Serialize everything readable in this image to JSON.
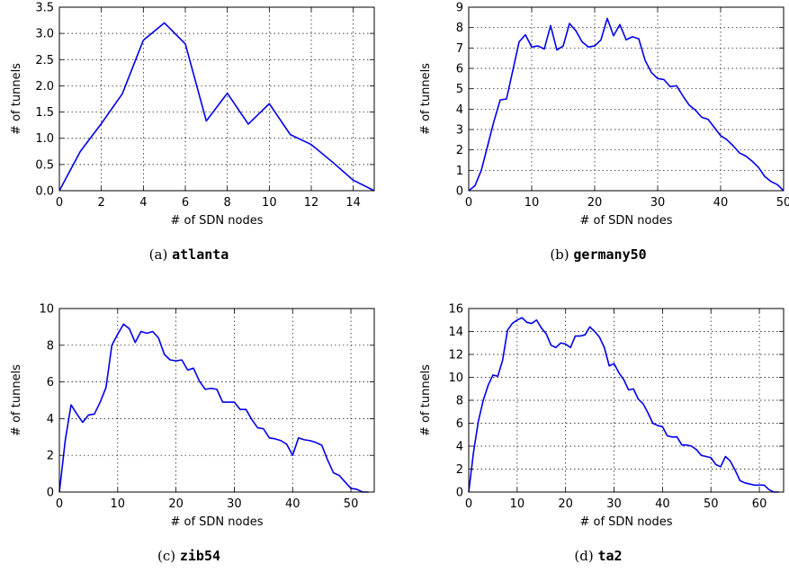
{
  "chart_data": [
    {
      "type": "line",
      "caption_prefix": "(a)",
      "caption_name": "atlanta",
      "xlabel": "# of SDN nodes",
      "ylabel": "# of tunnels",
      "xlim": [
        0,
        15
      ],
      "ylim": [
        0,
        3.5
      ],
      "xticks": [
        0,
        2,
        4,
        6,
        8,
        10,
        12,
        14
      ],
      "yticks": [
        0.0,
        0.5,
        1.0,
        1.5,
        2.0,
        2.5,
        3.0,
        3.5
      ],
      "ytick_format": "0.0",
      "grid": true,
      "color": "#0000ee",
      "x": [
        0,
        1,
        2,
        3,
        4,
        5,
        6,
        7,
        8,
        9,
        10,
        11,
        12,
        13,
        14,
        15
      ],
      "y": [
        0.0,
        0.75,
        1.28,
        1.85,
        2.87,
        3.2,
        2.8,
        1.33,
        1.86,
        1.27,
        1.66,
        1.07,
        0.88,
        0.55,
        0.2,
        0.0
      ]
    },
    {
      "type": "line",
      "caption_prefix": "(b)",
      "caption_name": "germany50",
      "xlabel": "# of SDN nodes",
      "ylabel": "# of tunnels",
      "xlim": [
        0,
        50
      ],
      "ylim": [
        0,
        9
      ],
      "xticks": [
        0,
        10,
        20,
        30,
        40,
        50
      ],
      "yticks": [
        0,
        1,
        2,
        3,
        4,
        5,
        6,
        7,
        8,
        9
      ],
      "ytick_format": "0",
      "grid": true,
      "color": "#0000ee",
      "x": [
        0,
        1,
        2,
        3,
        4,
        5,
        6,
        7,
        8,
        9,
        10,
        11,
        12,
        13,
        14,
        15,
        16,
        17,
        18,
        19,
        20,
        21,
        22,
        23,
        24,
        25,
        26,
        27,
        28,
        29,
        30,
        31,
        32,
        33,
        34,
        35,
        36,
        37,
        38,
        39,
        40,
        41,
        42,
        43,
        44,
        45,
        46,
        47,
        48,
        49,
        50
      ],
      "y": [
        0,
        0.25,
        1.0,
        2.2,
        3.4,
        4.45,
        4.5,
        5.9,
        7.3,
        7.65,
        7.05,
        7.1,
        6.95,
        8.1,
        6.9,
        7.1,
        8.2,
        7.85,
        7.3,
        7.05,
        7.1,
        7.4,
        8.45,
        7.6,
        8.15,
        7.4,
        7.55,
        7.45,
        6.4,
        5.8,
        5.5,
        5.45,
        5.1,
        5.15,
        4.65,
        4.2,
        3.95,
        3.6,
        3.5,
        3.1,
        2.7,
        2.5,
        2.2,
        1.85,
        1.7,
        1.45,
        1.15,
        0.7,
        0.45,
        0.3,
        0.0
      ]
    },
    {
      "type": "line",
      "caption_prefix": "(c)",
      "caption_name": "zib54",
      "xlabel": "# of SDN nodes",
      "ylabel": "# of tunnels",
      "xlim": [
        0,
        54
      ],
      "ylim": [
        0,
        10
      ],
      "xticks": [
        0,
        10,
        20,
        30,
        40,
        50
      ],
      "yticks": [
        0,
        2,
        4,
        6,
        8,
        10
      ],
      "ytick_format": "0",
      "grid": true,
      "color": "#0000ee",
      "x": [
        0,
        1,
        2,
        3,
        4,
        5,
        6,
        7,
        8,
        9,
        10,
        11,
        12,
        13,
        14,
        15,
        16,
        17,
        18,
        19,
        20,
        21,
        22,
        23,
        24,
        25,
        26,
        27,
        28,
        29,
        30,
        31,
        32,
        33,
        34,
        35,
        36,
        37,
        38,
        39,
        40,
        41,
        42,
        43,
        44,
        45,
        46,
        47,
        48,
        49,
        50,
        51,
        52,
        53
      ],
      "y": [
        0,
        2.8,
        4.75,
        4.25,
        3.8,
        4.2,
        4.25,
        4.9,
        5.7,
        8.0,
        8.6,
        9.15,
        8.9,
        8.15,
        8.75,
        8.65,
        8.75,
        8.4,
        7.5,
        7.2,
        7.15,
        7.2,
        6.65,
        6.75,
        6.05,
        5.6,
        5.65,
        5.6,
        4.9,
        4.9,
        4.9,
        4.5,
        4.5,
        3.95,
        3.5,
        3.45,
        2.95,
        2.9,
        2.8,
        2.6,
        2.0,
        2.95,
        2.85,
        2.8,
        2.7,
        2.55,
        1.75,
        1.05,
        0.9,
        0.55,
        0.2,
        0.15,
        0.0,
        0.0
      ]
    },
    {
      "type": "line",
      "caption_prefix": "(d)",
      "caption_name": "ta2",
      "xlabel": "# of SDN nodes",
      "ylabel": "# of tunnels",
      "xlim": [
        0,
        65
      ],
      "ylim": [
        0,
        16
      ],
      "xticks": [
        0,
        10,
        20,
        30,
        40,
        50,
        60
      ],
      "yticks": [
        0,
        2,
        4,
        6,
        8,
        10,
        12,
        14,
        16
      ],
      "ytick_format": "0",
      "grid": true,
      "color": "#0000ee",
      "x": [
        0,
        1,
        2,
        3,
        4,
        5,
        6,
        7,
        8,
        9,
        10,
        11,
        12,
        13,
        14,
        15,
        16,
        17,
        18,
        19,
        20,
        21,
        22,
        23,
        24,
        25,
        26,
        27,
        28,
        29,
        30,
        31,
        32,
        33,
        34,
        35,
        36,
        37,
        38,
        39,
        40,
        41,
        42,
        43,
        44,
        45,
        46,
        47,
        48,
        49,
        50,
        51,
        52,
        53,
        54,
        55,
        56,
        57,
        58,
        59,
        60,
        61,
        62,
        63,
        64
      ],
      "y": [
        0,
        3.5,
        6.2,
        8.0,
        9.3,
        10.2,
        10.1,
        11.5,
        14.1,
        14.7,
        15.0,
        15.2,
        14.8,
        14.7,
        15.0,
        14.3,
        13.8,
        12.8,
        12.6,
        13.0,
        12.9,
        12.6,
        13.6,
        13.6,
        13.7,
        14.4,
        14.0,
        13.5,
        12.6,
        11.0,
        11.2,
        10.4,
        9.8,
        8.9,
        9.0,
        8.1,
        7.7,
        6.9,
        6.0,
        5.8,
        5.7,
        4.9,
        4.8,
        4.8,
        4.1,
        4.1,
        4.0,
        3.7,
        3.2,
        3.1,
        3.0,
        2.4,
        2.2,
        3.1,
        2.7,
        1.9,
        1.0,
        0.8,
        0.7,
        0.6,
        0.6,
        0.6,
        0.2,
        0.0,
        0.0
      ]
    }
  ]
}
